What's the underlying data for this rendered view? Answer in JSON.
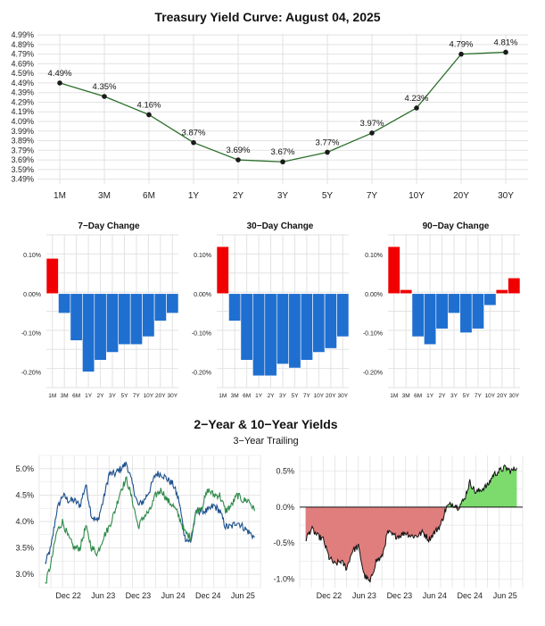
{
  "colors": {
    "line": "#2a6e2a",
    "point": "#1a1a1a",
    "grid": "#e2e2e2",
    "pos_bar": "#f00000",
    "neg_bar": "#1f6fd0",
    "yield_2y": "#1b4f8c",
    "yield_10y": "#2e8a4a",
    "spread_pos": "#7ddb6e",
    "spread_neg": "#e07e7e",
    "spread_line": "#111111"
  },
  "chart_data": [
    {
      "type": "line",
      "title": "Treasury Yield Curve: August 04, 2025",
      "categories": [
        "1M",
        "3M",
        "6M",
        "1Y",
        "2Y",
        "3Y",
        "5Y",
        "7Y",
        "10Y",
        "20Y",
        "30Y"
      ],
      "values": [
        4.49,
        4.35,
        4.16,
        3.87,
        3.69,
        3.67,
        3.77,
        3.97,
        4.23,
        4.79,
        4.81
      ],
      "labels": [
        "4.49%",
        "4.35%",
        "4.16%",
        "3.87%",
        "3.69%",
        "3.67%",
        "3.77%",
        "3.97%",
        "4.23%",
        "4.79%",
        "4.81%"
      ],
      "ylim": [
        3.44,
        5.0
      ],
      "yticks": [
        "3.49%",
        "3.59%",
        "3.69%",
        "3.79%",
        "3.89%",
        "3.99%",
        "4.09%",
        "4.19%",
        "4.29%",
        "4.39%",
        "4.49%",
        "4.59%",
        "4.69%",
        "4.79%",
        "4.89%",
        "4.99%"
      ],
      "ytick_values": [
        3.49,
        3.59,
        3.69,
        3.79,
        3.89,
        3.99,
        4.09,
        4.19,
        4.29,
        4.39,
        4.49,
        4.59,
        4.69,
        4.79,
        4.89,
        4.99
      ]
    },
    {
      "type": "bar",
      "title": "7−Day Change",
      "categories": [
        "1M",
        "3M",
        "6M",
        "1Y",
        "2Y",
        "3Y",
        "5Y",
        "7Y",
        "10Y",
        "20Y",
        "30Y"
      ],
      "values": [
        0.09,
        -0.05,
        -0.12,
        -0.2,
        -0.17,
        -0.15,
        -0.13,
        -0.13,
        -0.11,
        -0.07,
        -0.05
      ],
      "ylim": [
        -0.24,
        0.15
      ],
      "yticks": [
        "0.10%",
        "0.00%",
        "-0.10%",
        "-0.20%"
      ],
      "ytick_values": [
        0.1,
        0.0,
        -0.1,
        -0.2
      ]
    },
    {
      "type": "bar",
      "title": "30−Day Change",
      "categories": [
        "1M",
        "3M",
        "6M",
        "1Y",
        "2Y",
        "3Y",
        "5Y",
        "7Y",
        "10Y",
        "20Y",
        "30Y"
      ],
      "values": [
        0.12,
        -0.07,
        -0.17,
        -0.21,
        -0.21,
        -0.18,
        -0.19,
        -0.17,
        -0.15,
        -0.14,
        -0.11
      ],
      "ylim": [
        -0.24,
        0.15
      ],
      "yticks": [
        "0.10%",
        "0.00%",
        "-0.10%",
        "-0.20%"
      ],
      "ytick_values": [
        0.1,
        0.0,
        -0.1,
        -0.2
      ]
    },
    {
      "type": "bar",
      "title": "90−Day Change",
      "categories": [
        "1M",
        "3M",
        "6M",
        "1Y",
        "2Y",
        "3Y",
        "5Y",
        "7Y",
        "10Y",
        "20Y",
        "30Y"
      ],
      "values": [
        0.12,
        0.01,
        -0.11,
        -0.13,
        -0.09,
        -0.05,
        -0.1,
        -0.09,
        -0.03,
        0.01,
        0.04
      ],
      "ylim": [
        -0.24,
        0.15
      ],
      "yticks": [
        "0.10%",
        "0.00%",
        "-0.10%",
        "-0.20%"
      ],
      "ytick_values": [
        0.1,
        0.0,
        -0.1,
        -0.2
      ]
    },
    {
      "type": "line",
      "title": "2−Year & 10−Year Yields",
      "subtitle": "3−Year Trailing",
      "x_start": "2022-08",
      "x_end": "2025-08",
      "xticks": [
        "Dec 22",
        "Jun 23",
        "Dec 23",
        "Jun 24",
        "Dec 24",
        "Jun 25"
      ],
      "xtick_months": [
        4,
        10,
        16,
        22,
        28,
        34
      ],
      "ylim": [
        2.75,
        5.25
      ],
      "yticks": [
        "3.0%",
        "3.5%",
        "4.0%",
        "4.5%",
        "5.0%"
      ],
      "ytick_values": [
        3.0,
        3.5,
        4.0,
        4.5,
        5.0
      ],
      "series": [
        {
          "key": "2Y",
          "months": [
            0,
            1,
            2,
            3,
            4,
            5,
            6,
            7,
            8,
            9,
            10,
            11,
            12,
            13,
            14,
            15,
            16,
            17,
            18,
            19,
            20,
            21,
            22,
            23,
            24,
            25,
            26,
            27,
            28,
            29,
            30,
            31,
            32,
            33,
            34,
            35,
            36
          ],
          "values": [
            3.2,
            3.5,
            4.2,
            4.5,
            4.4,
            4.4,
            4.3,
            4.7,
            4.1,
            4.0,
            4.4,
            4.9,
            4.9,
            5.0,
            5.1,
            4.7,
            4.3,
            4.4,
            4.6,
            4.9,
            4.9,
            4.8,
            4.7,
            4.4,
            3.7,
            3.6,
            4.2,
            4.2,
            4.2,
            4.3,
            4.2,
            3.9,
            3.9,
            4.0,
            3.9,
            3.8,
            3.7
          ]
        },
        {
          "key": "10Y",
          "months": [
            0,
            1,
            2,
            3,
            4,
            5,
            6,
            7,
            8,
            9,
            10,
            11,
            12,
            13,
            14,
            15,
            16,
            17,
            18,
            19,
            20,
            21,
            22,
            23,
            24,
            25,
            26,
            27,
            28,
            29,
            30,
            31,
            32,
            33,
            34,
            35,
            36
          ],
          "values": [
            2.8,
            3.2,
            3.8,
            4.0,
            3.7,
            3.5,
            3.5,
            3.9,
            3.5,
            3.4,
            3.7,
            3.9,
            4.2,
            4.6,
            4.8,
            4.4,
            3.9,
            4.1,
            4.2,
            4.5,
            4.6,
            4.4,
            4.3,
            4.1,
            3.8,
            3.7,
            4.2,
            4.3,
            4.6,
            4.5,
            4.5,
            4.2,
            4.3,
            4.5,
            4.4,
            4.4,
            4.2
          ]
        }
      ]
    },
    {
      "type": "area",
      "title": "",
      "x_start": "2022-08",
      "x_end": "2025-08",
      "xticks": [
        "Dec 22",
        "Jun 23",
        "Dec 23",
        "Jun 24",
        "Dec 24",
        "Jun 25"
      ],
      "xtick_months": [
        4,
        10,
        16,
        22,
        28,
        34
      ],
      "ylim": [
        -1.12,
        0.72
      ],
      "yticks": [
        "0.5%",
        "0.0%",
        "-0.5%",
        "-1.0%"
      ],
      "ytick_values": [
        0.5,
        0.0,
        -0.5,
        -1.0
      ],
      "series": [
        {
          "key": "10Y-2Y spread",
          "months": [
            0,
            1,
            2,
            3,
            4,
            5,
            6,
            7,
            8,
            9,
            10,
            11,
            12,
            13,
            14,
            15,
            16,
            17,
            18,
            19,
            20,
            21,
            22,
            23,
            24,
            25,
            26,
            27,
            28,
            29,
            30,
            31,
            32,
            33,
            34,
            35,
            36
          ],
          "values": [
            -0.45,
            -0.3,
            -0.4,
            -0.45,
            -0.7,
            -0.8,
            -0.75,
            -0.85,
            -0.6,
            -0.55,
            -0.95,
            -1.05,
            -0.75,
            -0.7,
            -0.35,
            -0.4,
            -0.4,
            -0.35,
            -0.4,
            -0.4,
            -0.35,
            -0.45,
            -0.35,
            -0.25,
            0.0,
            0.05,
            0.0,
            0.1,
            0.35,
            0.2,
            0.25,
            0.3,
            0.45,
            0.5,
            0.55,
            0.5,
            0.55
          ]
        }
      ]
    }
  ]
}
